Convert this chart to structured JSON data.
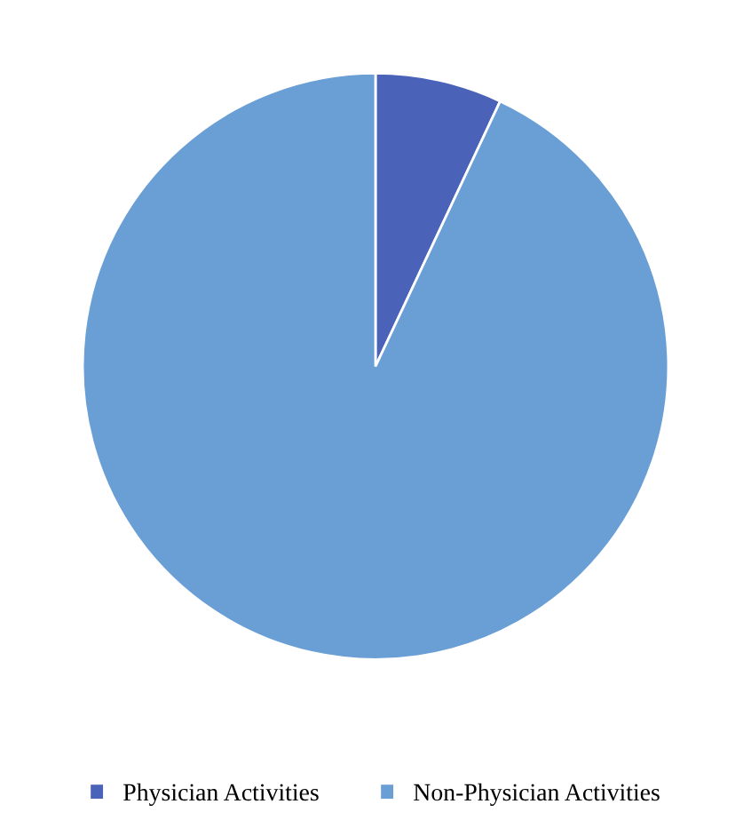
{
  "chart_data": {
    "type": "pie",
    "categories": [
      "Physician Activities",
      "Non-Physician Activities"
    ],
    "values": [
      7,
      93
    ],
    "colors": [
      "#4a62b8",
      "#6a9fd6"
    ],
    "legend": "bottom"
  }
}
